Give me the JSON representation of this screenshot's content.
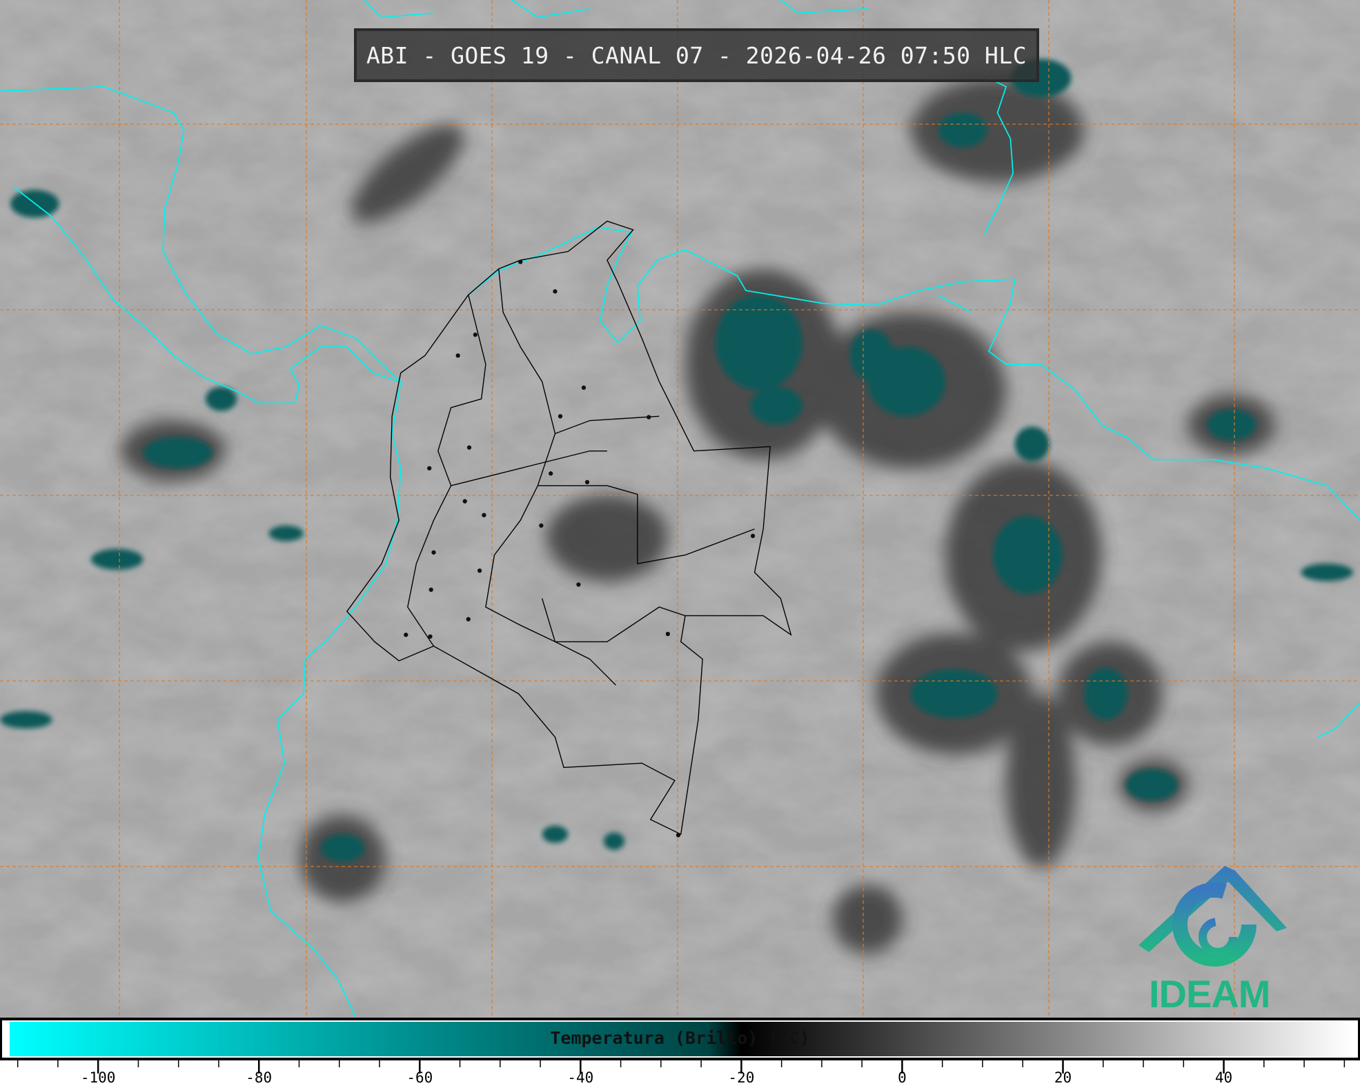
{
  "header": {
    "title": "ABI - GOES 19 - CANAL 07 - 2026-04-26 07:50 HLC"
  },
  "colorbar": {
    "label": "Temperatura (Brillo) (°C)",
    "unit": "°C",
    "range": [
      -111,
      56
    ],
    "major_ticks": [
      -100,
      -80,
      -60,
      -40,
      -20,
      0,
      20,
      40
    ],
    "tick_labels": [
      "-100",
      "-80",
      "-60",
      "-40",
      "-20",
      "0",
      "20",
      "40"
    ],
    "minor_tick_step": 5,
    "colormap": [
      {
        "value": -111,
        "color": "#00ffff"
      },
      {
        "value": -60,
        "color": "#008080"
      },
      {
        "value": -22,
        "color": "#003333"
      },
      {
        "value": -20,
        "color": "#000000"
      },
      {
        "value": 56,
        "color": "#ffffff"
      }
    ]
  },
  "logo": {
    "text": "IDEAM",
    "colors": [
      "#3a78c0",
      "#22b585"
    ]
  },
  "colors": {
    "coastline": "#00f0f0",
    "borders": "#000000",
    "graticule": "#e07820",
    "background": "#a8a8a8"
  }
}
